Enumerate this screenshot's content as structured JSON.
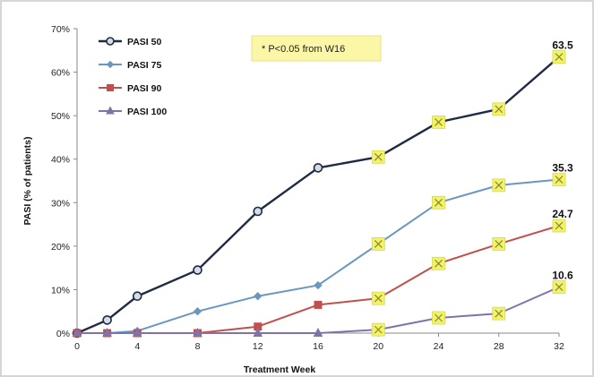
{
  "chart_data": {
    "type": "line",
    "xlabel": "Treatment Week",
    "ylabel": "PASI (% of patients)",
    "ylim": [
      0,
      70
    ],
    "xlim": [
      0,
      32
    ],
    "x_ticks": [
      0,
      4,
      8,
      12,
      16,
      20,
      24,
      28,
      32
    ],
    "y_ticks": [
      "0%",
      "10%",
      "20%",
      "30%",
      "40%",
      "50%",
      "60%",
      "70%"
    ],
    "y_tick_values": [
      0,
      10,
      20,
      30,
      40,
      50,
      60,
      70
    ],
    "legend_position": "top-left",
    "annotation": "* P<0.05 from W16",
    "highlight_color": "#f3f36a",
    "highlight_from_week": 20,
    "series": [
      {
        "name": "PASI 50",
        "color": "#1f2a44",
        "marker": "circle",
        "x": [
          0,
          2,
          4,
          8,
          12,
          16,
          20,
          24,
          28,
          32
        ],
        "values": [
          0,
          3,
          8.5,
          14.5,
          28,
          38,
          40.5,
          48.5,
          51.5,
          63.5
        ],
        "end_label": "63.5"
      },
      {
        "name": "PASI 75",
        "color": "#6a97c0",
        "marker": "diamond",
        "x": [
          0,
          2,
          4,
          8,
          12,
          16,
          20,
          24,
          28,
          32
        ],
        "values": [
          0,
          0,
          0.5,
          5,
          8.5,
          11,
          20.5,
          30,
          34,
          35.3
        ],
        "end_label": "35.3"
      },
      {
        "name": "PASI 90",
        "color": "#c0504d",
        "marker": "square",
        "x": [
          0,
          2,
          4,
          8,
          12,
          16,
          20,
          24,
          28,
          32
        ],
        "values": [
          0,
          0,
          0,
          0,
          1.5,
          6.5,
          8,
          16,
          20.5,
          24.7
        ],
        "end_label": "24.7"
      },
      {
        "name": "PASI 100",
        "color": "#7f73a9",
        "marker": "triangle",
        "x": [
          0,
          2,
          4,
          8,
          12,
          16,
          20,
          24,
          28,
          32
        ],
        "values": [
          0,
          0,
          0,
          0,
          0,
          0,
          0.8,
          3.5,
          4.5,
          10.6
        ],
        "end_label": "10.6"
      }
    ]
  }
}
